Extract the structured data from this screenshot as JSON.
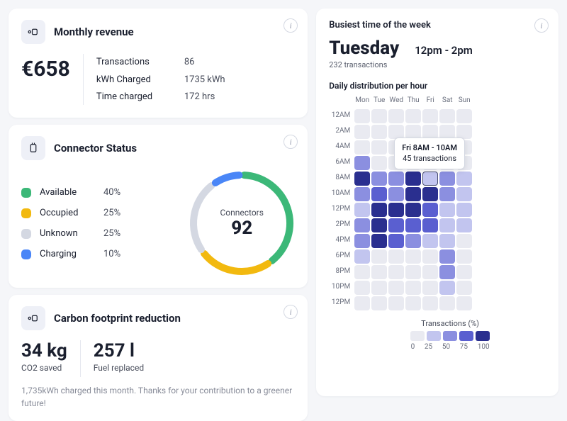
{
  "colors": {
    "bg": "#f5f6f9",
    "card_bg": "#ffffff",
    "text": "#1a1f2e",
    "muted": "#888c99",
    "chip_bg": "#eef0f7"
  },
  "revenue": {
    "title": "Monthly revenue",
    "amount": "€658",
    "stats": [
      {
        "label": "Transactions",
        "value": "86"
      },
      {
        "label": "kWh Charged",
        "value": "1735 kWh"
      },
      {
        "label": "Time charged",
        "value": "172 hrs"
      }
    ]
  },
  "connector": {
    "title": "Connector Status",
    "center_label": "Connectors",
    "center_value": "92",
    "items": [
      {
        "name": "Available",
        "pct": "40%",
        "value": 40,
        "color": "#3cb878"
      },
      {
        "name": "Occupied",
        "pct": "25%",
        "value": 25,
        "color": "#f2b90f"
      },
      {
        "name": "Unknown",
        "pct": "25%",
        "value": 25,
        "color": "#d4d8e2"
      },
      {
        "name": "Charging",
        "pct": "10%",
        "value": 10,
        "color": "#4a86f7"
      }
    ],
    "donut": {
      "size": 150,
      "thickness": 10,
      "gap_deg": 6,
      "start_deg": -90
    }
  },
  "carbon": {
    "title": "Carbon footprint reduction",
    "metrics": [
      {
        "value": "34 kg",
        "label": "CO2 saved"
      },
      {
        "value": "257 l",
        "label": "Fuel replaced"
      }
    ],
    "note": "1,735kWh charged this month. Thanks for your contribution to a greener future!"
  },
  "busiest": {
    "heading": "Busiest time of the week",
    "day": "Tuesday",
    "time": "12pm - 2pm",
    "sub": "232 transactions",
    "dist_title": "Daily distribution per hour",
    "days": [
      "Mon",
      "Tue",
      "Wed",
      "Thu",
      "Fri",
      "Sat",
      "Sun"
    ],
    "hours": [
      "12AM",
      "2AM",
      "4AM",
      "6AM",
      "8AM",
      "10AM",
      "12PM",
      "2PM",
      "4PM",
      "6PM",
      "8PM",
      "10PM",
      "12PM"
    ],
    "scale": {
      "title": "Transactions (%)",
      "stops": [
        0,
        25,
        50,
        75,
        100
      ],
      "colors": [
        "#e9eaf1",
        "#c2c5ef",
        "#8b8fe0",
        "#5a5fd0",
        "#2a2f8f"
      ]
    },
    "grid": [
      [
        0,
        0,
        0,
        0,
        0,
        0,
        0
      ],
      [
        0,
        0,
        0,
        0,
        0,
        0,
        0
      ],
      [
        0,
        0,
        0,
        0,
        0,
        0,
        0
      ],
      [
        2,
        0,
        0,
        0,
        0,
        0,
        0
      ],
      [
        4,
        2,
        2,
        4,
        1,
        2,
        1
      ],
      [
        2,
        3,
        2,
        4,
        4,
        2,
        1
      ],
      [
        1,
        4,
        4,
        4,
        3,
        1,
        1
      ],
      [
        2,
        4,
        3,
        3,
        3,
        1,
        1
      ],
      [
        2,
        4,
        3,
        2,
        1,
        1,
        0
      ],
      [
        1,
        0,
        0,
        0,
        0,
        2,
        0
      ],
      [
        0,
        0,
        0,
        0,
        0,
        2,
        0
      ],
      [
        0,
        0,
        0,
        0,
        0,
        1,
        0
      ],
      [
        0,
        0,
        0,
        0,
        0,
        0,
        0
      ]
    ],
    "tooltip": {
      "row": 4,
      "col": 4,
      "title": "Fri 8AM - 10AM",
      "sub": "45 transactions"
    }
  }
}
